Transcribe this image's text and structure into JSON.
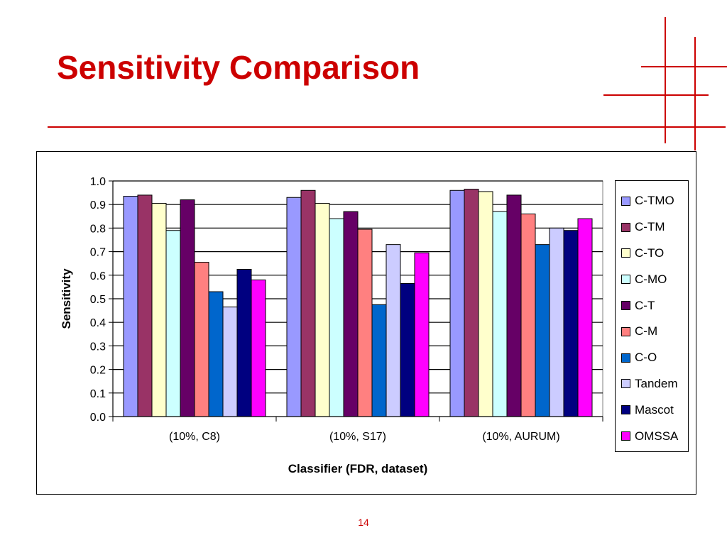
{
  "slide": {
    "title": "Sensitivity Comparison",
    "page_number": "14",
    "accent_color": "#cc0000"
  },
  "chart_data": {
    "type": "bar",
    "title": "",
    "xlabel": "Classifier (FDR, dataset)",
    "ylabel": "Sensitivity",
    "ylim": [
      0.0,
      1.0
    ],
    "yticks": [
      "0.0",
      "0.1",
      "0.2",
      "0.3",
      "0.4",
      "0.5",
      "0.6",
      "0.7",
      "0.8",
      "0.9",
      "1.0"
    ],
    "grid": "horizontal",
    "legend_position": "right",
    "categories": [
      "(10%, C8)",
      "(10%, S17)",
      "(10%, AURUM)"
    ],
    "series": [
      {
        "name": "C-TMO",
        "color": "#9999ff",
        "values": [
          0.935,
          0.93,
          0.96
        ]
      },
      {
        "name": "C-TM",
        "color": "#993366",
        "values": [
          0.94,
          0.96,
          0.965
        ]
      },
      {
        "name": "C-TO",
        "color": "#ffffcc",
        "values": [
          0.905,
          0.905,
          0.955
        ]
      },
      {
        "name": "C-MO",
        "color": "#ccffff",
        "values": [
          0.79,
          0.84,
          0.87
        ]
      },
      {
        "name": "C-T",
        "color": "#660066",
        "values": [
          0.92,
          0.87,
          0.94
        ]
      },
      {
        "name": "C-M",
        "color": "#ff8080",
        "values": [
          0.655,
          0.795,
          0.86
        ]
      },
      {
        "name": "C-O",
        "color": "#0066cc",
        "values": [
          0.53,
          0.475,
          0.73
        ]
      },
      {
        "name": "Tandem",
        "color": "#ccccff",
        "values": [
          0.465,
          0.73,
          0.8
        ]
      },
      {
        "name": "Mascot",
        "color": "#000080",
        "values": [
          0.625,
          0.565,
          0.79
        ]
      },
      {
        "name": "OMSSA",
        "color": "#ff00ff",
        "values": [
          0.58,
          0.695,
          0.84
        ]
      }
    ]
  }
}
